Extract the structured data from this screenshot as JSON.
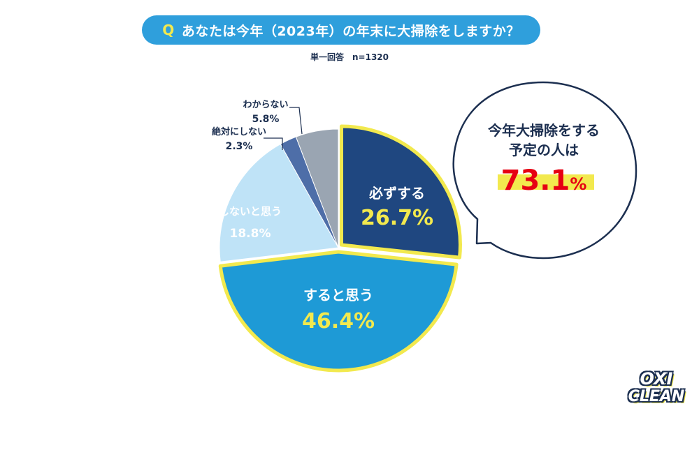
{
  "header": {
    "q_mark": "Q",
    "question": "あなたは今年（2023年）の年末に大掃除をしますか？",
    "subtitle": "単一回答　n=1320"
  },
  "callout": {
    "line1": "今年大掃除をする",
    "line2": "予定の人は",
    "value": "73.1",
    "unit": "%"
  },
  "logo": {
    "line1": "OXI",
    "line2": "CLEAN"
  },
  "colors": {
    "dark_navy": "#1c2f50",
    "highlight_yellow": "#f2e94e",
    "accent_red": "#e60012",
    "question_blue": "#2f9fdc"
  },
  "chart_data": {
    "type": "pie",
    "slices": [
      {
        "label": "必ずする",
        "value": 26.7,
        "display": "26.7%",
        "color": "#1f4780",
        "highlight": true
      },
      {
        "label": "すると思う",
        "value": 46.4,
        "display": "46.4%",
        "color": "#1e9ad6",
        "highlight": true
      },
      {
        "label": "しないと思う",
        "value": 18.8,
        "display": "18.8%",
        "color": "#bfe3f7",
        "highlight": false
      },
      {
        "label": "絶対にしない",
        "value": 2.3,
        "display": "2.3%",
        "color": "#4e6ea8",
        "highlight": false
      },
      {
        "label": "わからない",
        "value": 5.8,
        "display": "5.8%",
        "color": "#9aa5b2",
        "highlight": false
      }
    ]
  }
}
